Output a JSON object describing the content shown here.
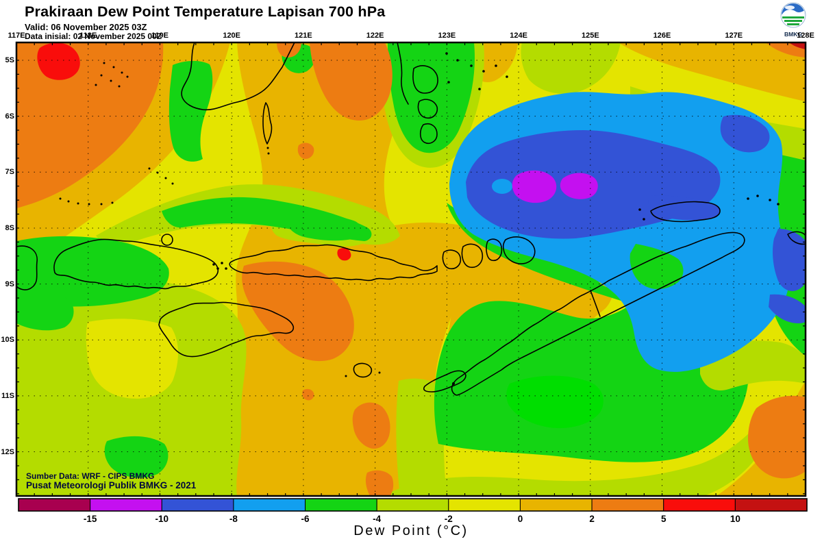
{
  "header": {
    "title": "Prakiraan Dew Point Temperature Lapisan 700 hPa",
    "valid": "Valid: 06 November 2025 03Z",
    "init": "Data inisial: 02 November 2025 00Z"
  },
  "logo": {
    "label": "BMKG"
  },
  "map": {
    "attribution_line1": "Sumber Data: WRF - CIPS BMKG",
    "attribution_line2": "Pusat Meteorologi Publik BMKG - 2021"
  },
  "axes": {
    "lon_labels": [
      "117E",
      "118E",
      "119E",
      "120E",
      "121E",
      "122E",
      "123E",
      "124E",
      "125E",
      "126E",
      "127E",
      "128E"
    ],
    "lat_labels": [
      "5S",
      "6S",
      "7S",
      "8S",
      "9S",
      "10S",
      "11S",
      "12S"
    ]
  },
  "colorbar": {
    "title": "Dew Point (°C)",
    "tick_labels": [
      "-15",
      "-10",
      "-8",
      "-6",
      "-4",
      "-2",
      "0",
      "2",
      "5",
      "10"
    ],
    "segment_colors": [
      "#A8004F",
      "#C410F0",
      "#3353D6",
      "#129FEF",
      "#14D414",
      "#B4DC00",
      "#E4E400",
      "#E8B400",
      "#ED7C12",
      "#F90D0B",
      "#C41111"
    ]
  },
  "palette": {
    "yellow": "#E4E400",
    "chartreuse": "#B4DC00",
    "green": "#14D414",
    "green_bright": "#00DE00",
    "gold": "#E8B400",
    "orange": "#ED7C12",
    "red": "#F90D0B",
    "darkred": "#C41111",
    "lightblue": "#129FEF",
    "royal": "#3353D6",
    "magenta": "#C410F0",
    "maroon": "#A8004F",
    "coast": "#000000",
    "logo_blue": "#2A6BC6",
    "logo_green": "#1FA83C"
  },
  "chart_data": {
    "type": "heatmap",
    "title": "Prakiraan Dew Point Temperature Lapisan 700 hPa",
    "units": "°C",
    "scale_breaks": [
      -15,
      -10,
      -8,
      -6,
      -4,
      -2,
      0,
      2,
      5,
      10
    ],
    "lon_range": [
      "117E",
      "128E"
    ],
    "lat_range": [
      "5S",
      "12S"
    ],
    "legend_position": "bottom"
  }
}
